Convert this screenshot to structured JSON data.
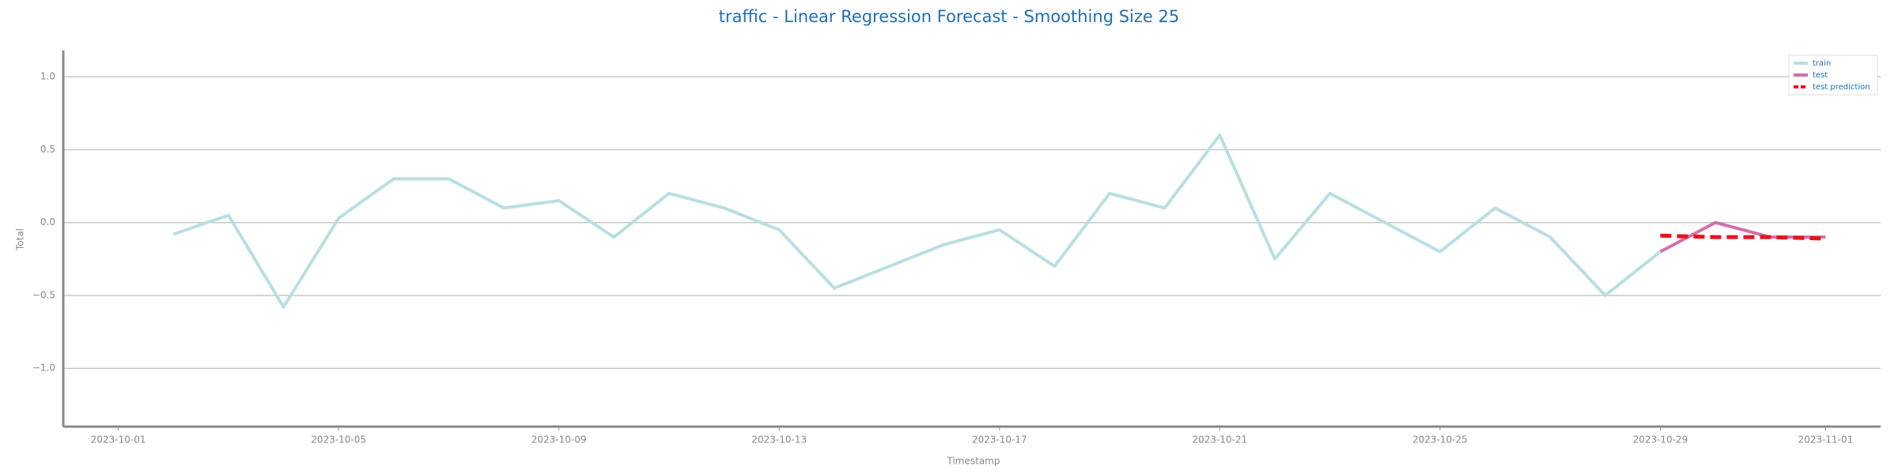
{
  "chart_data": {
    "type": "line",
    "title": "traffic - Linear Regression Forecast - Smoothing Size 25",
    "x_label": "Timestamp",
    "y_label": "Total",
    "x": [
      "2023-10-02",
      "2023-10-03",
      "2023-10-04",
      "2023-10-05",
      "2023-10-06",
      "2023-10-07",
      "2023-10-08",
      "2023-10-09",
      "2023-10-10",
      "2023-10-11",
      "2023-10-12",
      "2023-10-13",
      "2023-10-14",
      "2023-10-15",
      "2023-10-16",
      "2023-10-17",
      "2023-10-18",
      "2023-10-19",
      "2023-10-20",
      "2023-10-21",
      "2023-10-22",
      "2023-10-23",
      "2023-10-24",
      "2023-10-25",
      "2023-10-26",
      "2023-10-27",
      "2023-10-28",
      "2023-10-29",
      "2023-10-30",
      "2023-10-31",
      "2023-11-01"
    ],
    "series": [
      {
        "name": "train",
        "color": "#b9dfe0",
        "values": [
          -0.08,
          0.05,
          -0.58,
          0.03,
          0.3,
          0.3,
          0.1,
          0.15,
          -0.1,
          0.2,
          0.1,
          -0.05,
          -0.45,
          -0.3,
          -0.15,
          -0.05,
          -0.3,
          0.2,
          0.1,
          0.6,
          -0.25,
          0.2,
          0.0,
          -0.2,
          0.1,
          -0.1,
          -0.5,
          -0.2,
          null,
          null,
          null
        ]
      },
      {
        "name": "test",
        "color": "#d070a8",
        "values": [
          null,
          null,
          null,
          null,
          null,
          null,
          null,
          null,
          null,
          null,
          null,
          null,
          null,
          null,
          null,
          null,
          null,
          null,
          null,
          null,
          null,
          null,
          null,
          null,
          null,
          null,
          null,
          -0.2,
          0.0,
          -0.1,
          -0.1
        ]
      },
      {
        "name": "test prediction",
        "color": "#e8141c",
        "dashed": true,
        "values": [
          null,
          null,
          null,
          null,
          null,
          null,
          null,
          null,
          null,
          null,
          null,
          null,
          null,
          null,
          null,
          null,
          null,
          null,
          null,
          null,
          null,
          null,
          null,
          null,
          null,
          null,
          null,
          -0.09,
          -0.1,
          -0.1,
          -0.11
        ]
      }
    ],
    "xlim": [
      "2023-09-30",
      "2023-11-02"
    ],
    "xticks": [
      "2023-10-01",
      "2023-10-05",
      "2023-10-09",
      "2023-10-13",
      "2023-10-17",
      "2023-10-21",
      "2023-10-25",
      "2023-10-29",
      "2023-11-01"
    ],
    "ylim": [
      -1.4,
      1.18
    ],
    "yticks": [
      {
        "value": -1,
        "label": "−1.0"
      },
      {
        "value": -0.5,
        "label": "−0.5"
      },
      {
        "value": 0,
        "label": "0.0"
      },
      {
        "value": 0.5,
        "label": "0.5"
      },
      {
        "value": 1,
        "label": "1.0"
      }
    ],
    "grid": true,
    "legend": "upper right"
  }
}
